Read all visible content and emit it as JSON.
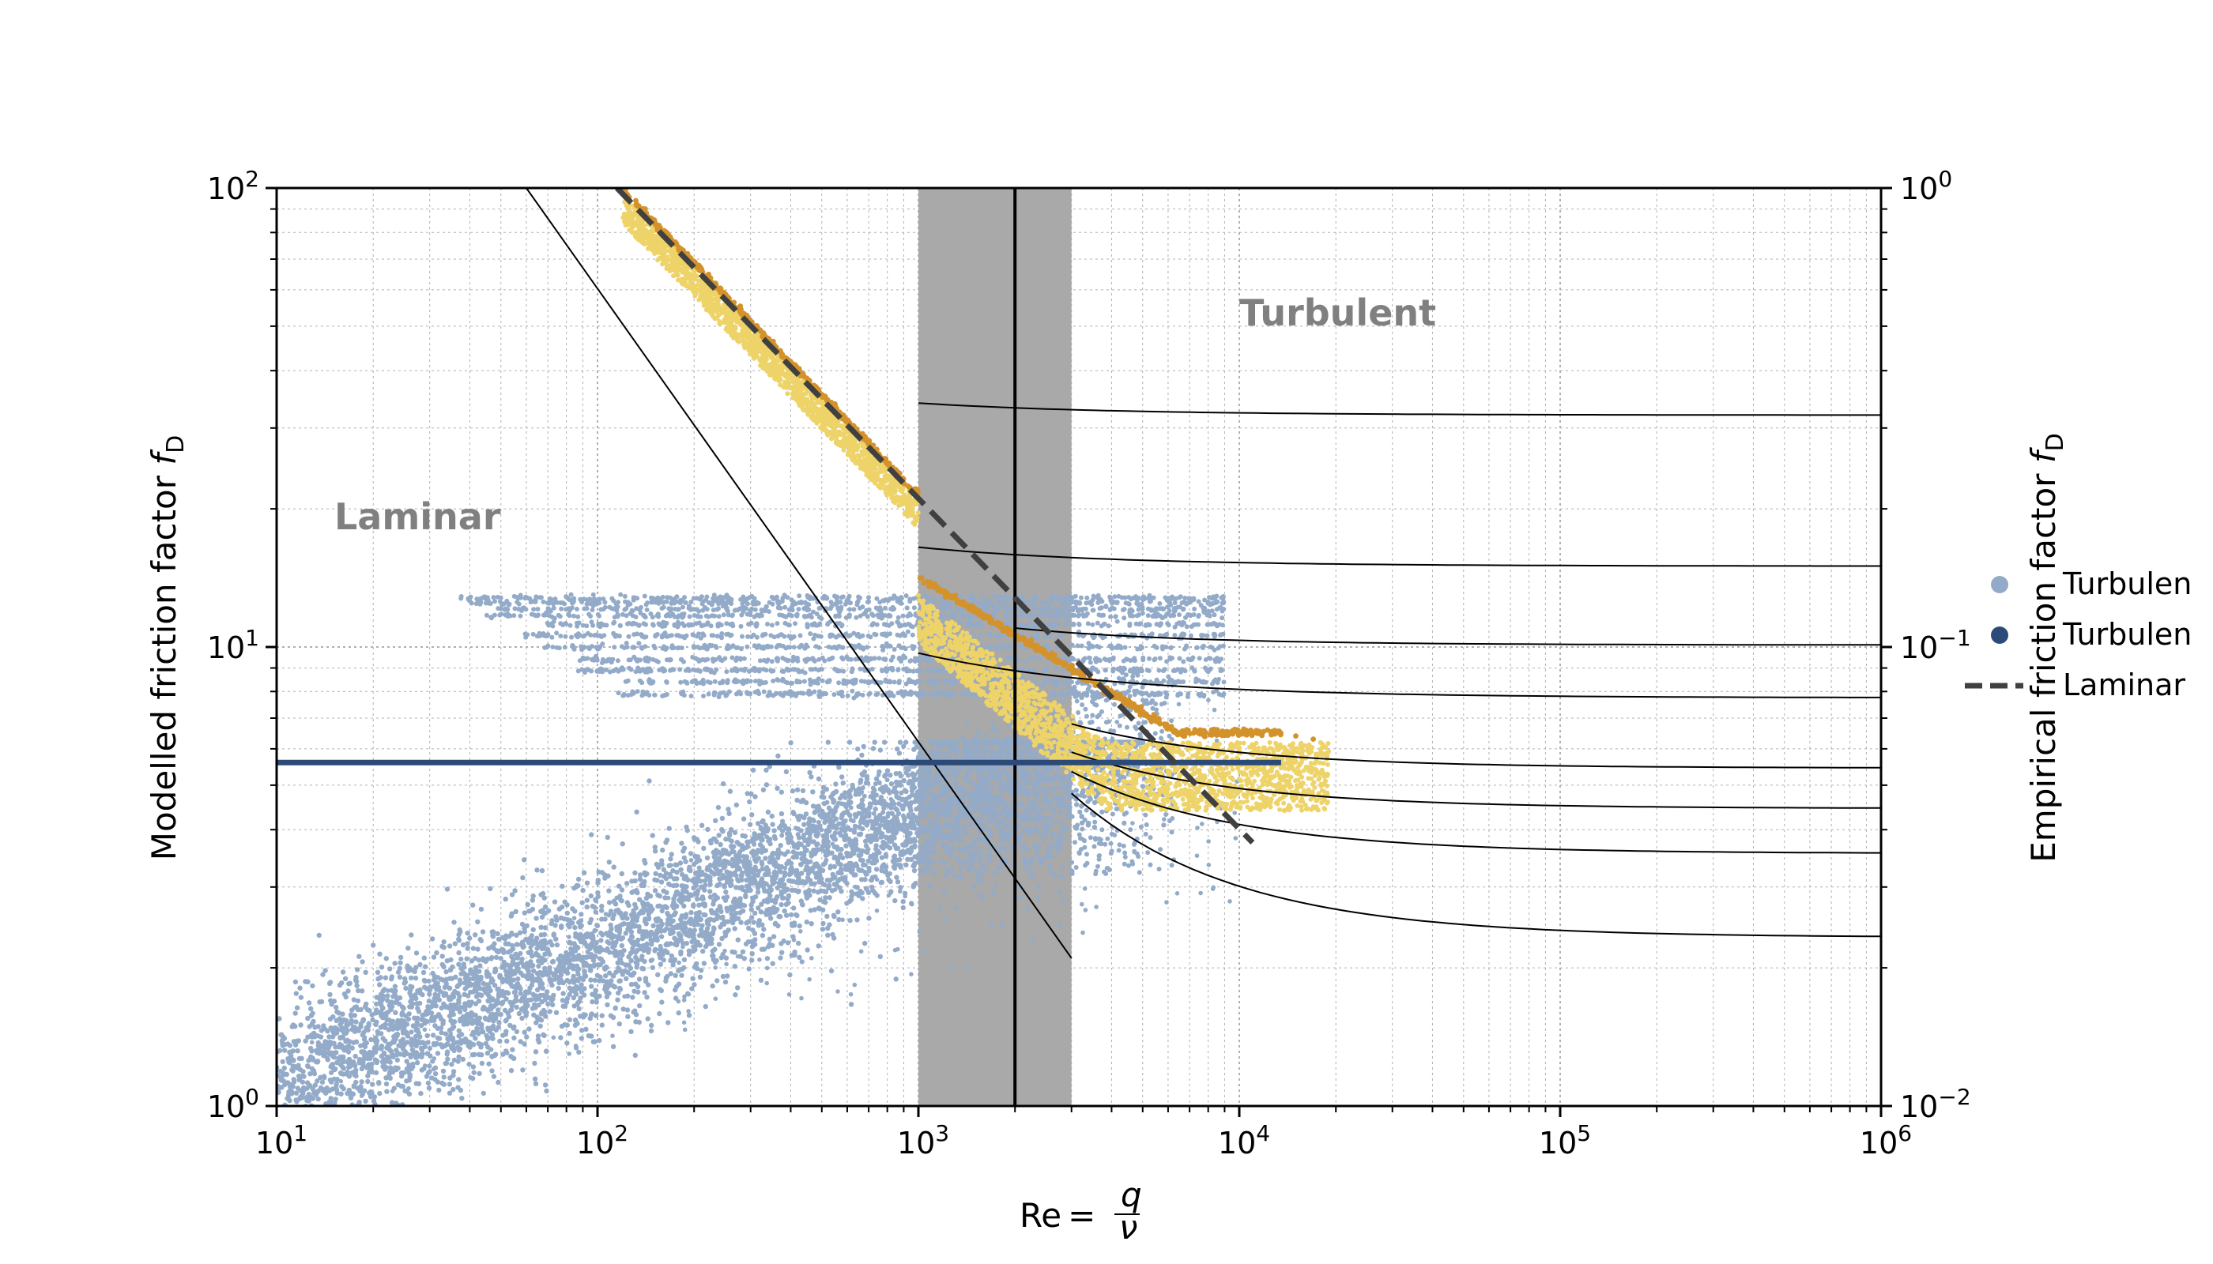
{
  "chart_data": {
    "type": "scatter",
    "xlabel": "Re = q/ν",
    "ylabel_left": "Modelled friction factor f_D",
    "ylabel_right": "Empirical friction factor f_D",
    "x_scale": "log",
    "y_left_scale": "log",
    "y_right_scale": "log",
    "xlim": [
      10,
      1000000
    ],
    "ylim_left": [
      1,
      100
    ],
    "ylim_right": [
      0.01,
      1
    ],
    "x_ticks": [
      {
        "base": "10",
        "exp": "1"
      },
      {
        "base": "10",
        "exp": "2"
      },
      {
        "base": "10",
        "exp": "3"
      },
      {
        "base": "10",
        "exp": "4"
      },
      {
        "base": "10",
        "exp": "5"
      },
      {
        "base": "10",
        "exp": "6"
      }
    ],
    "y_left_ticks": [
      {
        "base": "10",
        "exp": "0"
      },
      {
        "base": "10",
        "exp": "1"
      },
      {
        "base": "10",
        "exp": "2"
      }
    ],
    "y_right_ticks": [
      {
        "base": "10",
        "exp": "−2"
      },
      {
        "base": "10",
        "exp": "−1"
      },
      {
        "base": "10",
        "exp": "0"
      }
    ],
    "grid": true,
    "annotations": {
      "laminar": "Laminar",
      "turbulent": "Turbulent"
    },
    "transition_band": {
      "x_from": 1000,
      "x_to": 3000,
      "x_line": 2000,
      "color": "#a9a9a9"
    },
    "modelled_constant_line": {
      "y": 5.6,
      "x_from": 10,
      "x_to": 13500,
      "color": "#2c4a78"
    },
    "laminar_reference": {
      "name": "Laminar",
      "equation": "f = 64/Re",
      "x_from": 115,
      "x_to": 11000,
      "color": "#404040"
    },
    "thin_laminar_line": {
      "x_from": 60,
      "x_to": 3000,
      "y_at_60": 100,
      "y_at_3000": 2.1
    },
    "empirical_turbulent_curves_right_axis": [
      {
        "y_at_1000": 0.34,
        "y_at_1e6": 0.32
      },
      {
        "y_at_1000": 0.165,
        "y_at_1e6": 0.15
      },
      {
        "y_at_2000": 0.11,
        "y_at_1e6": 0.101
      },
      {
        "y_at_1000": 0.097,
        "y_at_1e6": 0.0775
      },
      {
        "y_at_3000": 0.068,
        "y_at_1e6": 0.0545
      },
      {
        "y_at_3000": 0.059,
        "y_at_1e6": 0.0445
      },
      {
        "y_at_3000": 0.0535,
        "y_at_1e6": 0.0355
      },
      {
        "y_at_3000": 0.048,
        "y_at_1e6": 0.0233
      }
    ],
    "series": [
      {
        "name": "Turbulen",
        "color": "#93abc8",
        "marker": "dot",
        "description_y_range": [
          1,
          13
        ],
        "x_range": [
          10,
          10000
        ]
      },
      {
        "name": "Turbulen",
        "color": "#2c4a78",
        "marker": "dot"
      },
      {
        "name": "Laminar",
        "color": "#404040",
        "marker": "dashed-line"
      }
    ],
    "empirical_band": {
      "colors": [
        "#eed369",
        "#d4922b"
      ],
      "x_range": [
        115,
        19000
      ]
    },
    "legend_placement": "right, clipped at page edge",
    "colors": {
      "axis": "#000000",
      "grid": "#b0b0b0",
      "light_scatter": "#93abc8",
      "dark_line": "#2c4a78",
      "yellow_band": "#eed369",
      "orange_edge": "#d4922b",
      "region_label": "#808080"
    }
  }
}
